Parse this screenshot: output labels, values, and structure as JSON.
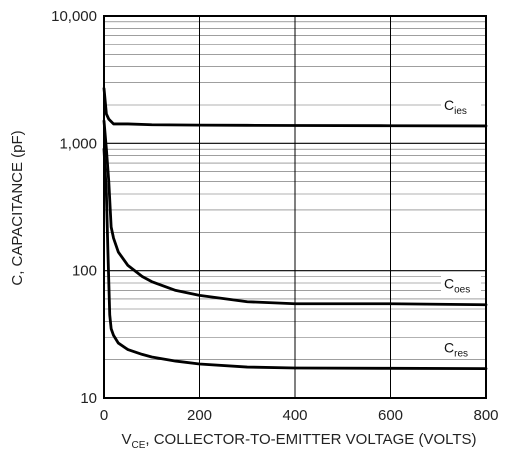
{
  "chart_data": {
    "type": "line",
    "title": "",
    "xlabel": {
      "main": "V",
      "sub": "CE",
      "rest": ", COLLECTOR-TO-EMITTER VOLTAGE (VOLTS)"
    },
    "ylabel": "C, CAPACITANCE (pF)",
    "xlim": [
      0,
      800
    ],
    "ylim": [
      10,
      10000
    ],
    "yscale": "log",
    "grid": true,
    "x_ticks": [
      "0",
      "200",
      "400",
      "600",
      "800"
    ],
    "y_ticks": [
      "10",
      "100",
      "1,000",
      "10,000"
    ],
    "series": [
      {
        "label_main": "C",
        "label_sub": "ies",
        "x": [
          0,
          5,
          10,
          20,
          50,
          100,
          200,
          300,
          400,
          600,
          800
        ],
        "y": [
          2700,
          1700,
          1550,
          1420,
          1420,
          1400,
          1390,
          1385,
          1380,
          1375,
          1370
        ]
      },
      {
        "label_main": "C",
        "label_sub": "oes",
        "x": [
          0,
          5,
          10,
          15,
          20,
          30,
          50,
          80,
          100,
          150,
          200,
          300,
          400,
          600,
          800
        ],
        "y": [
          1500,
          900,
          500,
          220,
          180,
          140,
          110,
          90,
          82,
          70,
          64,
          57,
          55,
          55,
          54
        ]
      },
      {
        "label_main": "C",
        "label_sub": "res",
        "x": [
          0,
          5,
          8,
          12,
          15,
          20,
          30,
          50,
          80,
          100,
          150,
          200,
          300,
          400,
          600,
          800
        ],
        "y": [
          900,
          400,
          150,
          45,
          35,
          31,
          27,
          24,
          22,
          21,
          19.5,
          18.5,
          17.5,
          17.2,
          17.1,
          17
        ]
      }
    ]
  }
}
